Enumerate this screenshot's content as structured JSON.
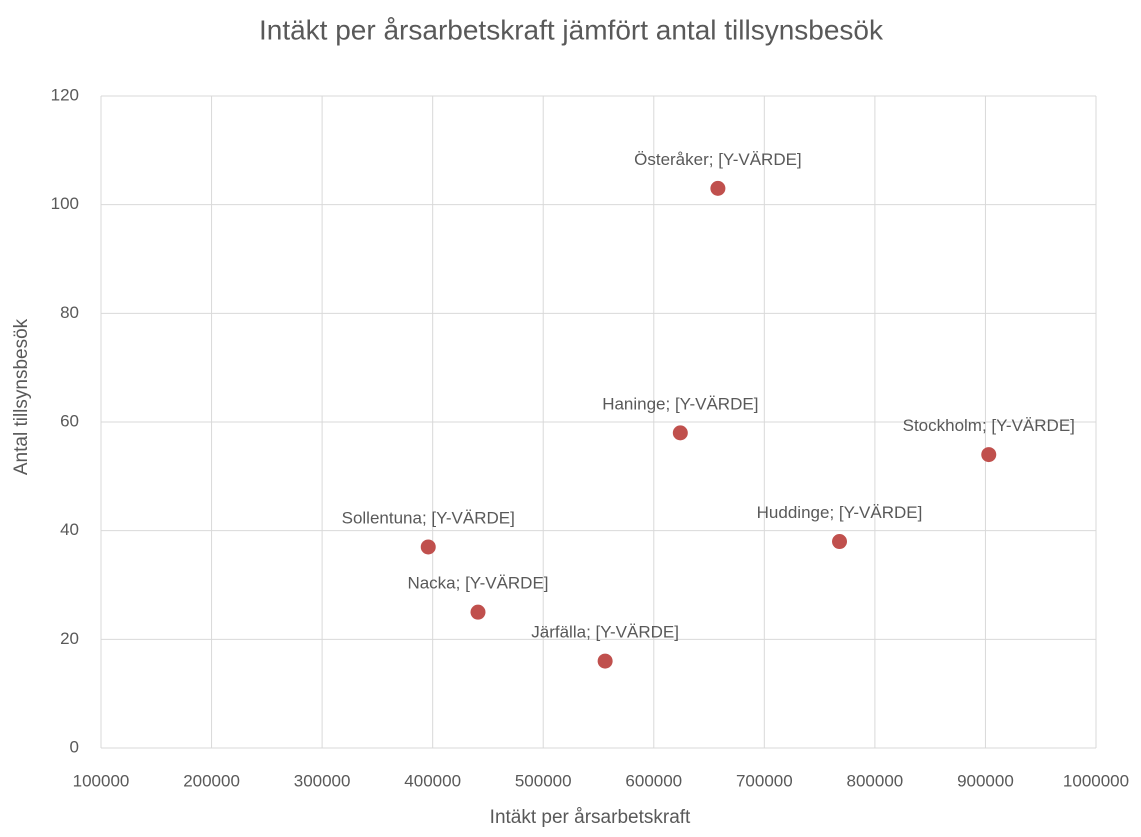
{
  "chart_data": {
    "type": "scatter",
    "title": "Intäkt per årsarbetskraft jämfört antal tillsynsbesök",
    "x_label": "Intäkt per årsarbetskraft",
    "y_label": "Antal tillsynsbesök",
    "point_labels": [
      "Österåker; [Y-VÄRDE]",
      "Haninge; [Y-VÄRDE]",
      "Stockholm; [Y-VÄRDE]",
      "Huddinge; [Y-VÄRDE]",
      "Sollentuna; [Y-VÄRDE]",
      "Nacka; [Y-VÄRDE]",
      "Järfälla; [Y-VÄRDE]"
    ],
    "x": [
      658000,
      624000,
      903000,
      768000,
      396000,
      441000,
      556000
    ],
    "values": [
      103,
      58,
      54,
      38,
      37,
      25,
      16
    ],
    "color": "#c0504d",
    "xlim": [
      100000,
      1000000
    ],
    "xticks": [
      100000,
      200000,
      300000,
      400000,
      500000,
      600000,
      700000,
      800000,
      900000,
      1000000
    ],
    "ylim": [
      0,
      120
    ],
    "yticks": [
      0,
      20,
      40,
      60,
      80,
      100,
      120
    ],
    "grid": true
  }
}
